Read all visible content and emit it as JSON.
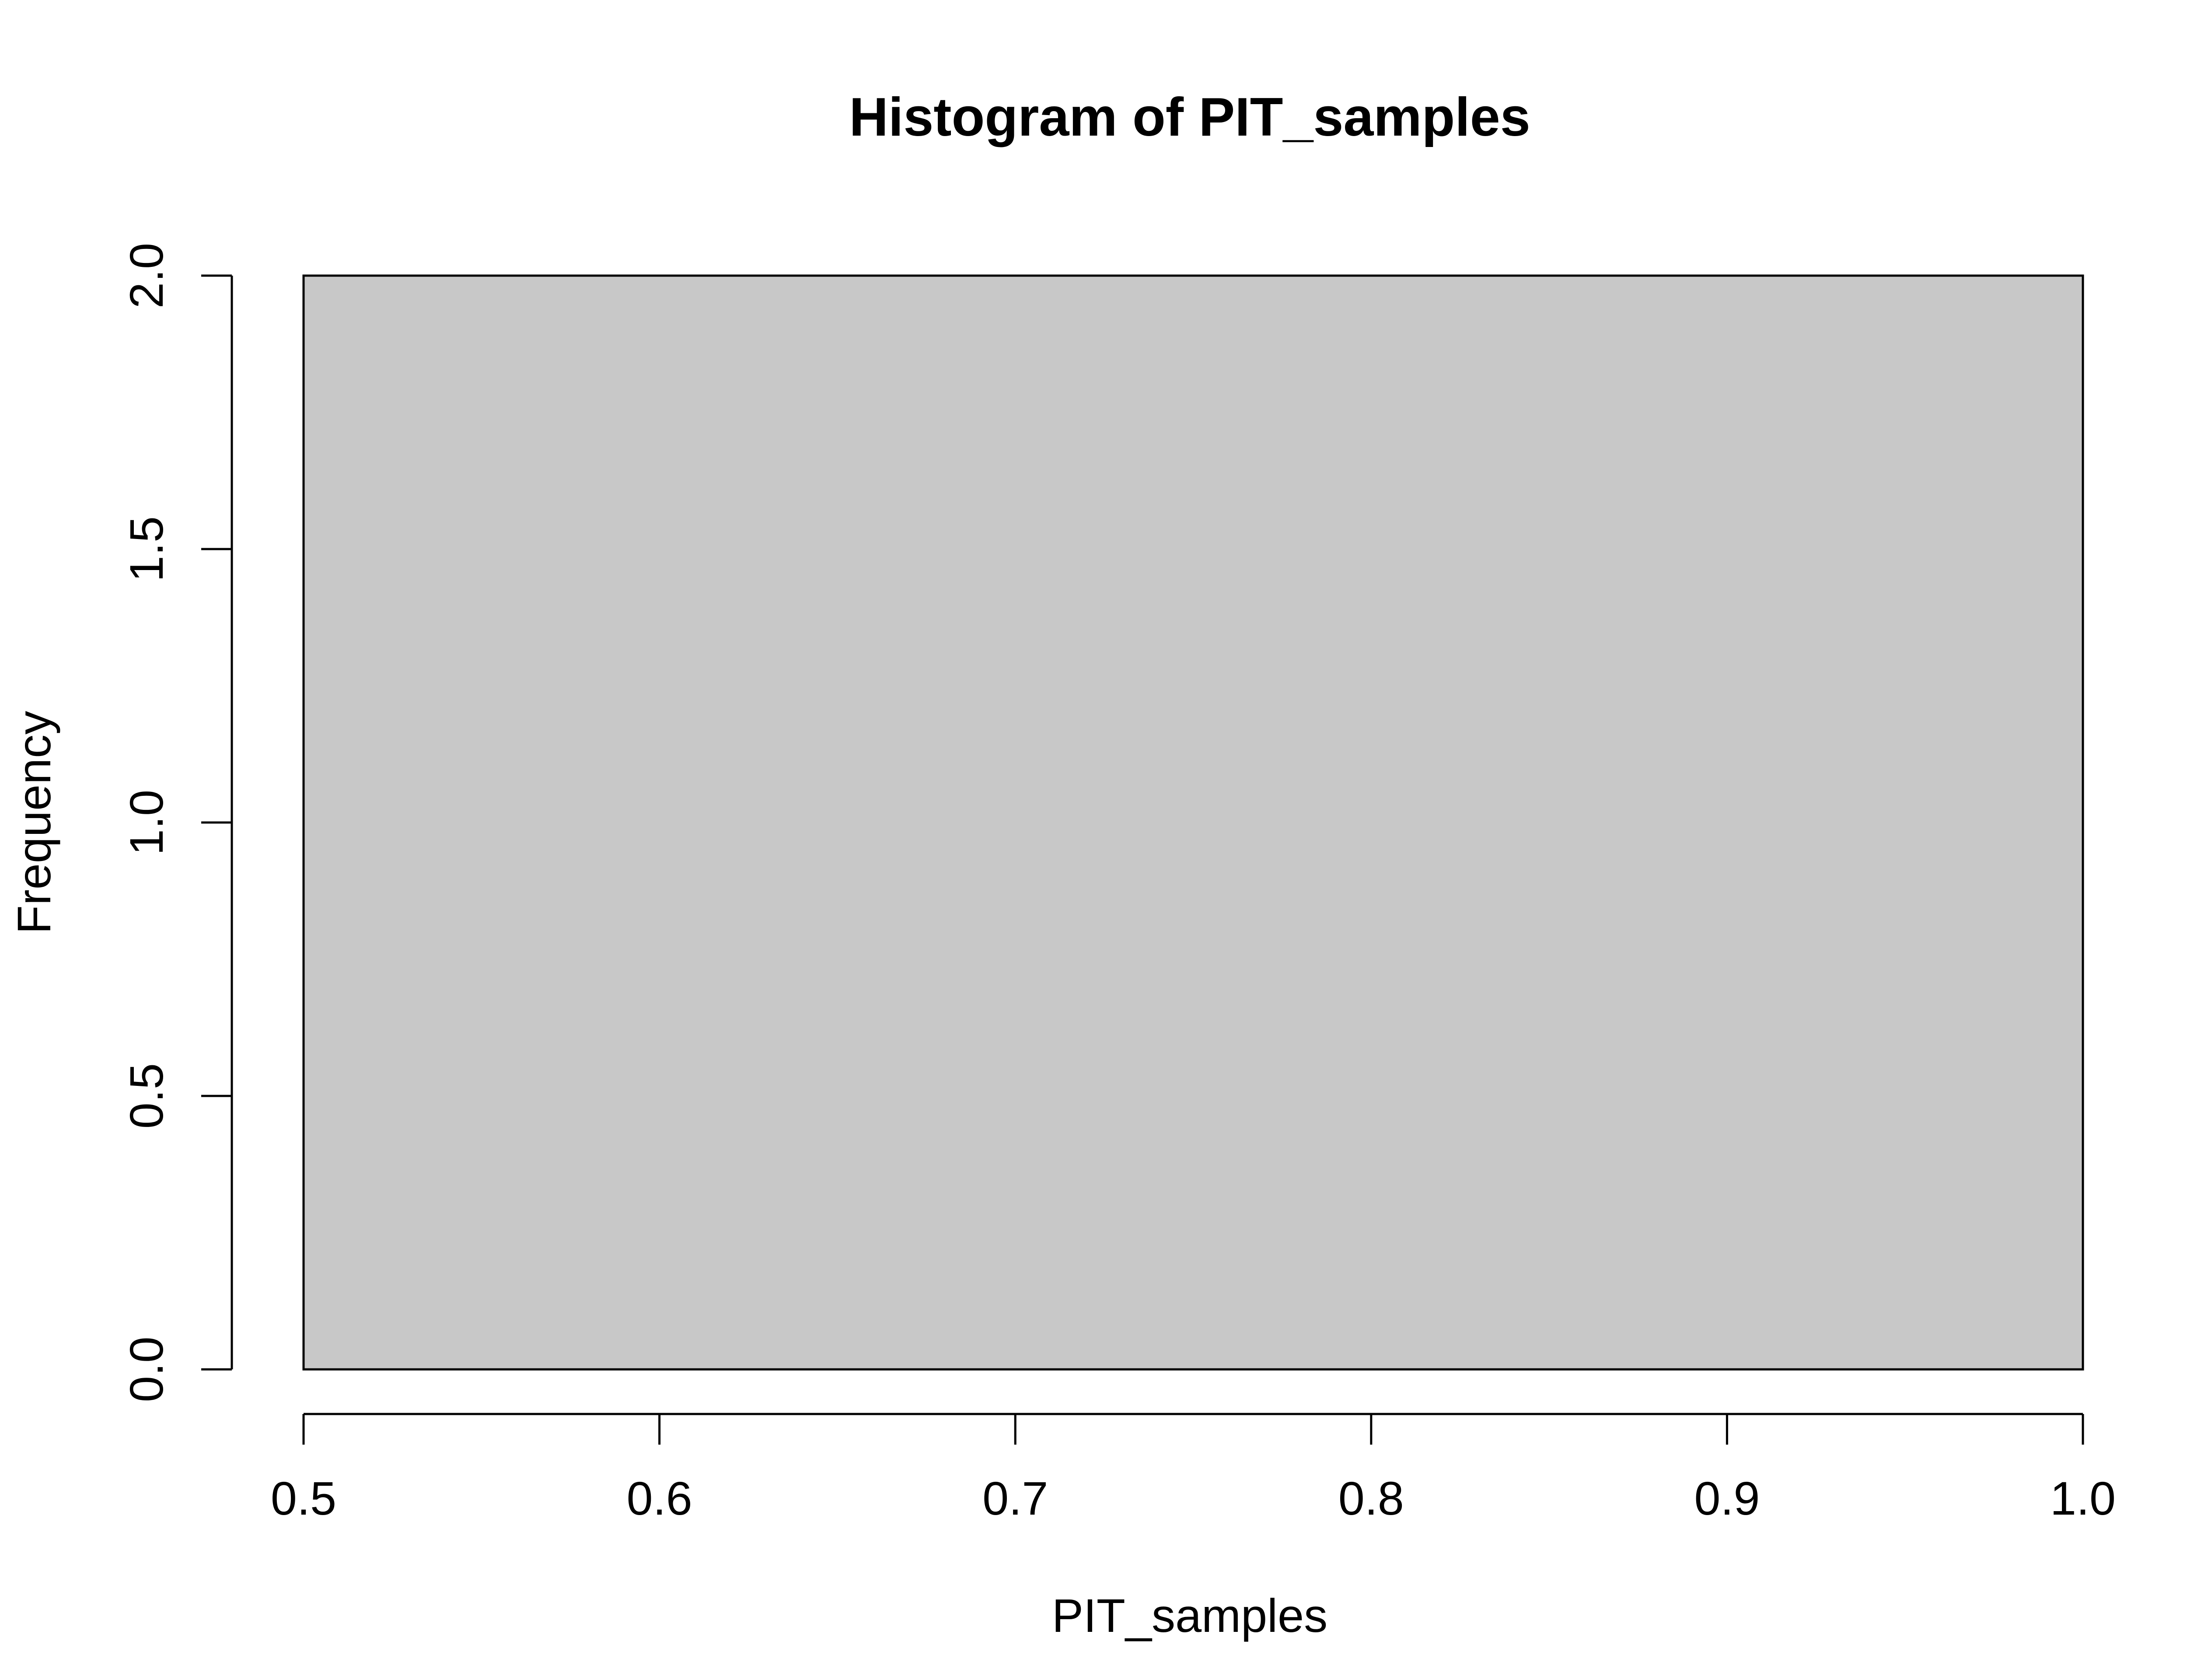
{
  "chart_data": {
    "type": "bar",
    "title": "Histogram of PIT_samples",
    "xlabel": "PIT_samples",
    "ylabel": "Frequency",
    "bins": [
      {
        "x_start": 0.5,
        "x_end": 1.0,
        "count": 2
      }
    ],
    "xlim": [
      0.5,
      1.0
    ],
    "ylim": [
      0,
      2
    ],
    "xticks": [
      "0.5",
      "0.6",
      "0.7",
      "0.8",
      "0.9",
      "1.0"
    ],
    "yticks": [
      "0.0",
      "0.5",
      "1.0",
      "1.5",
      "2.0"
    ],
    "bar_color": "#c8c8c8",
    "grid": false,
    "legend": "none"
  }
}
